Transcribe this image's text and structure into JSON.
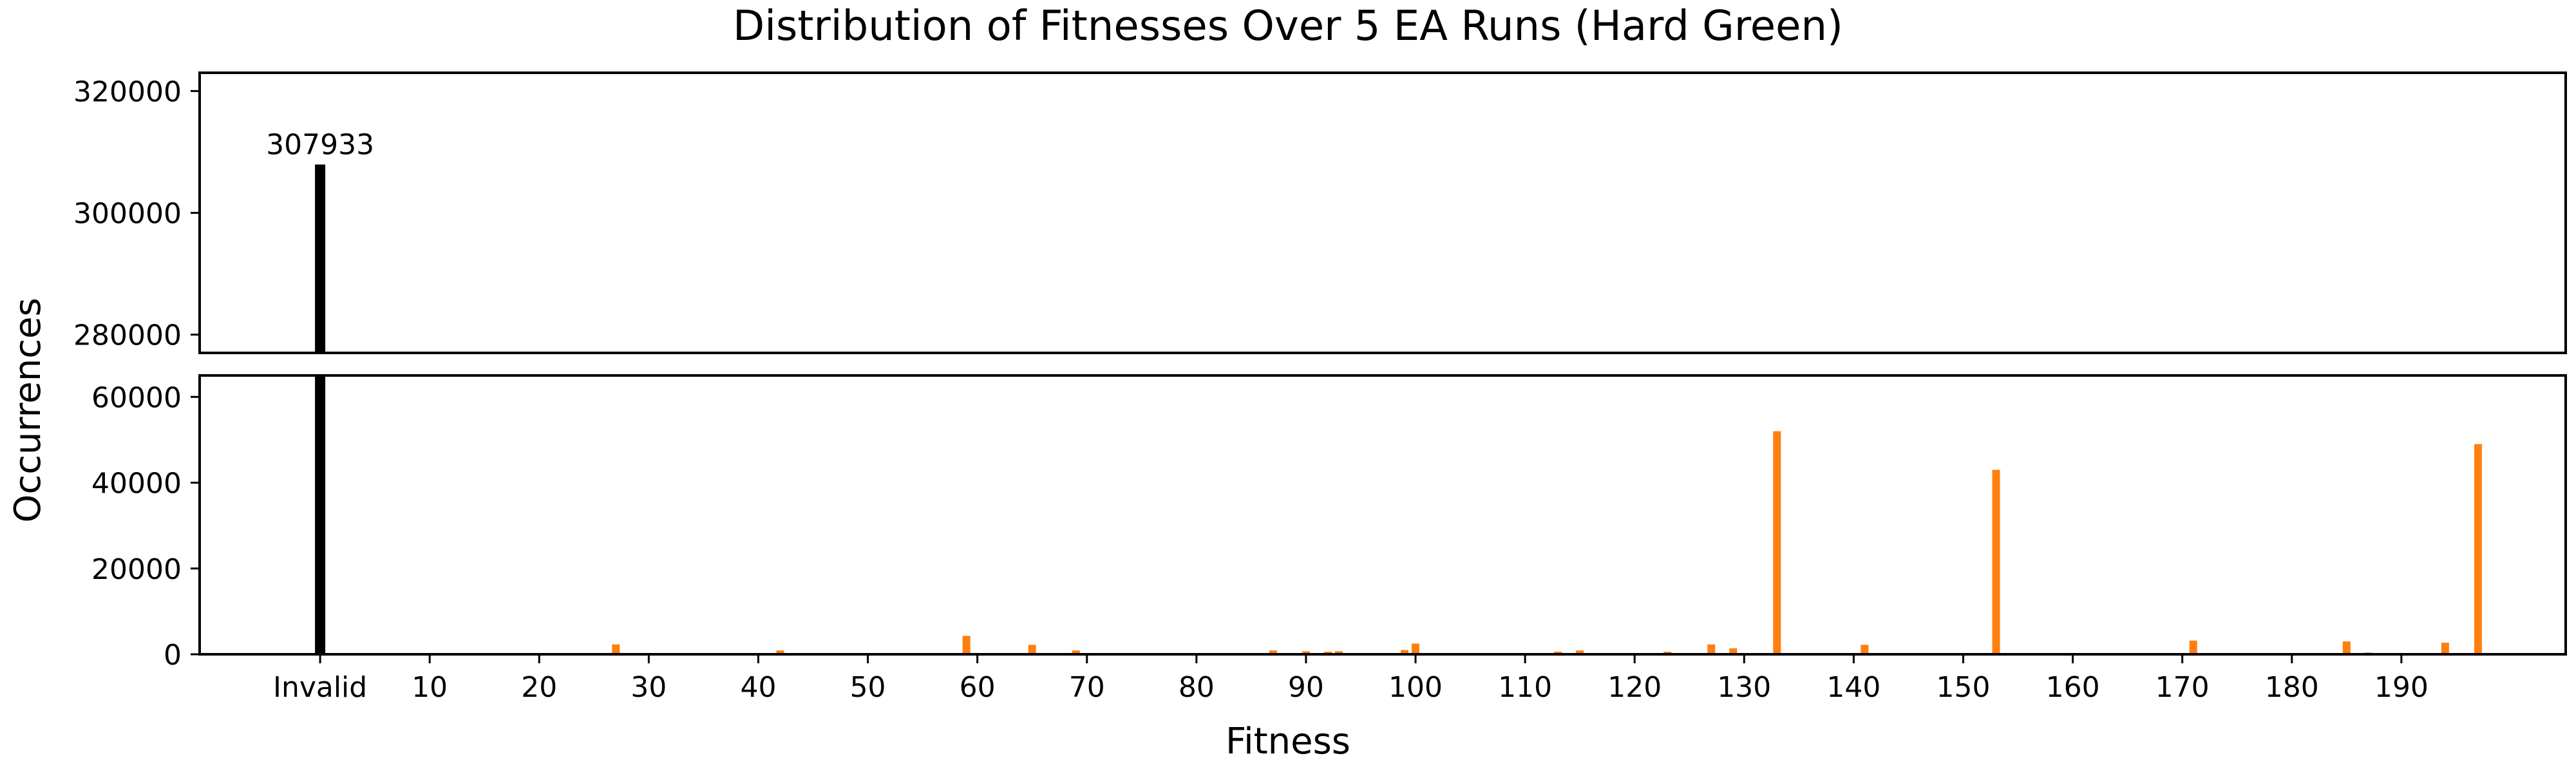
{
  "chart_data": {
    "type": "bar",
    "title": "Distribution of Fitnesses Over 5 EA Runs (Hard Green)",
    "xlabel": "Fitness",
    "ylabel": "Occurrences",
    "broken_y_axis": true,
    "upper_panel": {
      "ylim": [
        277000,
        323000
      ],
      "yticks": [
        280000,
        300000,
        320000
      ]
    },
    "lower_panel": {
      "ylim": [
        0,
        65000
      ],
      "yticks": [
        0,
        20000,
        40000,
        60000
      ]
    },
    "xlim": [
      -11,
      205
    ],
    "xticks": [
      {
        "value": 0,
        "label": "Invalid"
      },
      {
        "value": 10,
        "label": "10"
      },
      {
        "value": 20,
        "label": "20"
      },
      {
        "value": 30,
        "label": "30"
      },
      {
        "value": 40,
        "label": "40"
      },
      {
        "value": 50,
        "label": "50"
      },
      {
        "value": 60,
        "label": "60"
      },
      {
        "value": 70,
        "label": "70"
      },
      {
        "value": 80,
        "label": "80"
      },
      {
        "value": 90,
        "label": "90"
      },
      {
        "value": 100,
        "label": "100"
      },
      {
        "value": 110,
        "label": "110"
      },
      {
        "value": 120,
        "label": "120"
      },
      {
        "value": 130,
        "label": "130"
      },
      {
        "value": 140,
        "label": "140"
      },
      {
        "value": 150,
        "label": "150"
      },
      {
        "value": 160,
        "label": "160"
      },
      {
        "value": 170,
        "label": "170"
      },
      {
        "value": 180,
        "label": "180"
      },
      {
        "value": 190,
        "label": "190"
      }
    ],
    "invalid_bar": {
      "label": "Invalid",
      "value": 307933,
      "color": "#000000",
      "data_label": "307933"
    },
    "series": [
      {
        "color": "#ff7f0e",
        "points": [
          {
            "x": 15,
            "y": 200
          },
          {
            "x": 22,
            "y": 150
          },
          {
            "x": 27,
            "y": 2300
          },
          {
            "x": 42,
            "y": 900
          },
          {
            "x": 59,
            "y": 4300
          },
          {
            "x": 65,
            "y": 2200
          },
          {
            "x": 69,
            "y": 900
          },
          {
            "x": 71,
            "y": 300
          },
          {
            "x": 87,
            "y": 900
          },
          {
            "x": 90,
            "y": 700
          },
          {
            "x": 92,
            "y": 600
          },
          {
            "x": 93,
            "y": 700
          },
          {
            "x": 99,
            "y": 1000
          },
          {
            "x": 100,
            "y": 2500
          },
          {
            "x": 113,
            "y": 600
          },
          {
            "x": 115,
            "y": 900
          },
          {
            "x": 123,
            "y": 600
          },
          {
            "x": 127,
            "y": 2300
          },
          {
            "x": 129,
            "y": 1400
          },
          {
            "x": 133,
            "y": 52000
          },
          {
            "x": 141,
            "y": 2200
          },
          {
            "x": 148,
            "y": 200
          },
          {
            "x": 153,
            "y": 43000
          },
          {
            "x": 158,
            "y": 200
          },
          {
            "x": 171,
            "y": 3200
          },
          {
            "x": 185,
            "y": 3000
          },
          {
            "x": 187,
            "y": 400
          },
          {
            "x": 194,
            "y": 2700
          },
          {
            "x": 197,
            "y": 49000
          }
        ]
      }
    ]
  }
}
